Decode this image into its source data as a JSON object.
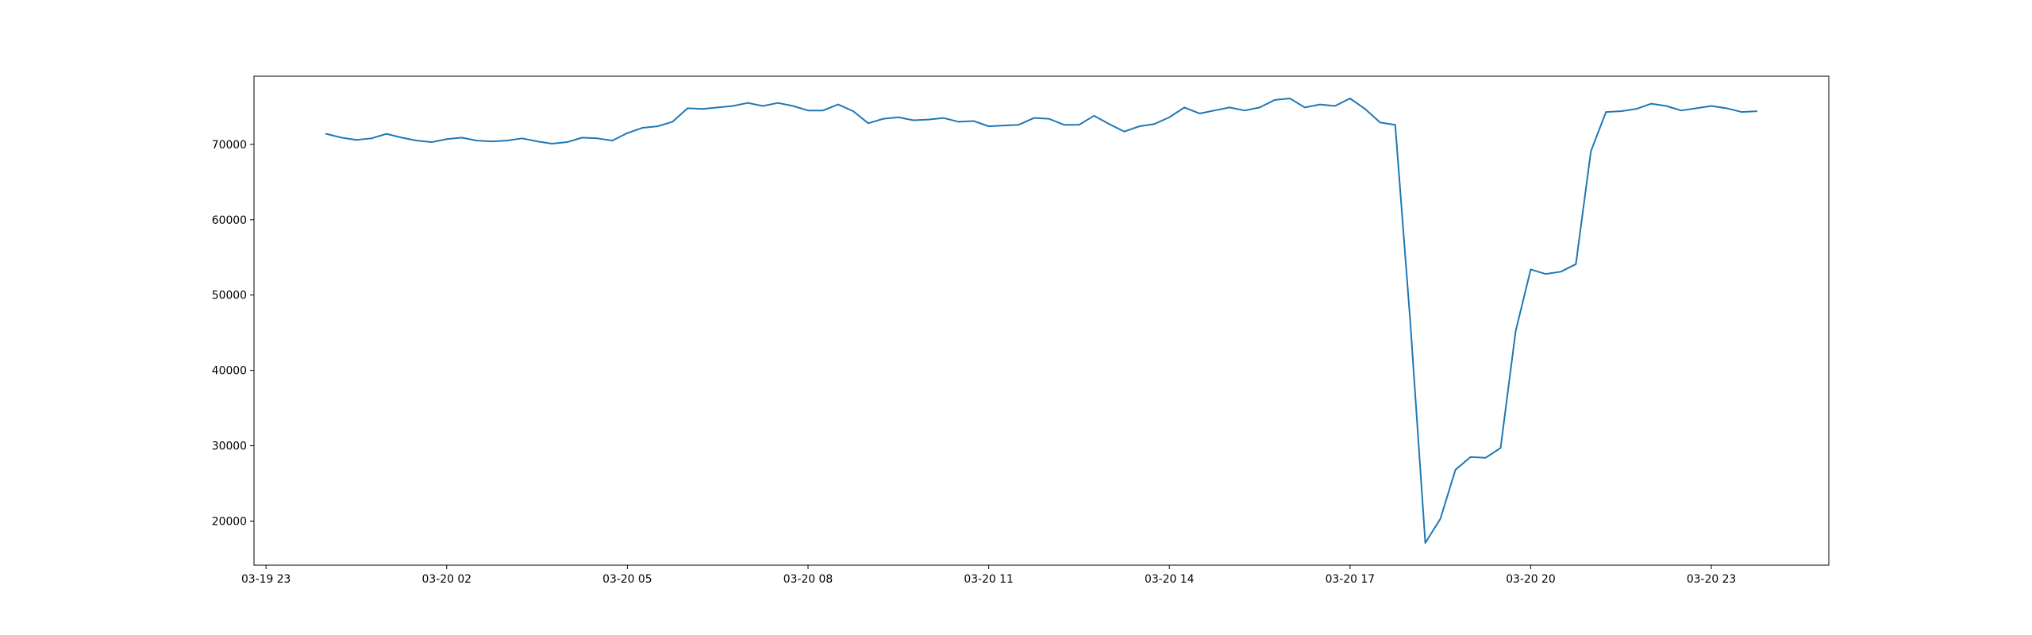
{
  "chart_data": {
    "type": "line",
    "x": [
      "03-20 00:00",
      "03-20 00:15",
      "03-20 00:30",
      "03-20 00:45",
      "03-20 01:00",
      "03-20 01:15",
      "03-20 01:30",
      "03-20 01:45",
      "03-20 02:00",
      "03-20 02:15",
      "03-20 02:30",
      "03-20 02:45",
      "03-20 03:00",
      "03-20 03:15",
      "03-20 03:30",
      "03-20 03:45",
      "03-20 04:00",
      "03-20 04:15",
      "03-20 04:30",
      "03-20 04:45",
      "03-20 05:00",
      "03-20 05:15",
      "03-20 05:30",
      "03-20 05:45",
      "03-20 06:00",
      "03-20 06:15",
      "03-20 06:30",
      "03-20 06:45",
      "03-20 07:00",
      "03-20 07:15",
      "03-20 07:30",
      "03-20 07:45",
      "03-20 08:00",
      "03-20 08:15",
      "03-20 08:30",
      "03-20 08:45",
      "03-20 09:00",
      "03-20 09:15",
      "03-20 09:30",
      "03-20 09:45",
      "03-20 10:00",
      "03-20 10:15",
      "03-20 10:30",
      "03-20 10:45",
      "03-20 11:00",
      "03-20 11:15",
      "03-20 11:30",
      "03-20 11:45",
      "03-20 12:00",
      "03-20 12:15",
      "03-20 12:30",
      "03-20 12:45",
      "03-20 13:00",
      "03-20 13:15",
      "03-20 13:30",
      "03-20 13:45",
      "03-20 14:00",
      "03-20 14:15",
      "03-20 14:30",
      "03-20 14:45",
      "03-20 15:00",
      "03-20 15:15",
      "03-20 15:30",
      "03-20 15:45",
      "03-20 16:00",
      "03-20 16:15",
      "03-20 16:30",
      "03-20 16:45",
      "03-20 17:00",
      "03-20 17:15",
      "03-20 17:30",
      "03-20 17:45",
      "03-20 18:00",
      "03-20 18:15",
      "03-20 18:30",
      "03-20 18:45",
      "03-20 19:00",
      "03-20 19:15",
      "03-20 19:30",
      "03-20 19:45",
      "03-20 20:00",
      "03-20 20:15",
      "03-20 20:30",
      "03-20 20:45",
      "03-20 21:00",
      "03-20 21:15",
      "03-20 21:30",
      "03-20 21:45",
      "03-20 22:00",
      "03-20 22:15",
      "03-20 22:30",
      "03-20 22:45",
      "03-20 23:00",
      "03-20 23:15",
      "03-20 23:30",
      "03-20 23:45"
    ],
    "series": [
      {
        "color": "#1f77b4",
        "values": [
          71400,
          70900,
          70600,
          70800,
          71400,
          70900,
          70500,
          70300,
          70700,
          70900,
          70500,
          70400,
          70500,
          70800,
          70400,
          70100,
          70300,
          70900,
          70800,
          70500,
          71500,
          72200,
          72400,
          73000,
          74800,
          74700,
          74900,
          75100,
          75500,
          75100,
          75500,
          75100,
          74500,
          74500,
          75300,
          74400,
          72800,
          73400,
          73600,
          73200,
          73300,
          73500,
          73000,
          73100,
          72400,
          72500,
          72600,
          73500,
          73400,
          72600,
          72600,
          73800,
          72700,
          71700,
          72400,
          72700,
          73600,
          74900,
          74100,
          74500,
          74900,
          74500,
          74900,
          75900,
          76100,
          74900,
          75300,
          75100,
          76100,
          74700,
          72900,
          72600,
          46500,
          17100,
          20300,
          26800,
          28500,
          28400,
          29700,
          45200,
          53400,
          52800,
          53100,
          54100,
          69100,
          74300,
          74400,
          74700,
          75400,
          75100,
          74500,
          74800,
          75100,
          74800,
          74300,
          74400
        ]
      }
    ],
    "xlim": [
      "03-19 22:48",
      "03-21 00:57"
    ],
    "xticks": [
      "03-19 23",
      "03-20 02",
      "03-20 05",
      "03-20 08",
      "03-20 11",
      "03-20 14",
      "03-20 17",
      "03-20 20",
      "03-20 23"
    ],
    "ylim": [
      14150,
      79050
    ],
    "yticks": [
      20000,
      30000,
      40000,
      50000,
      60000,
      70000
    ]
  }
}
